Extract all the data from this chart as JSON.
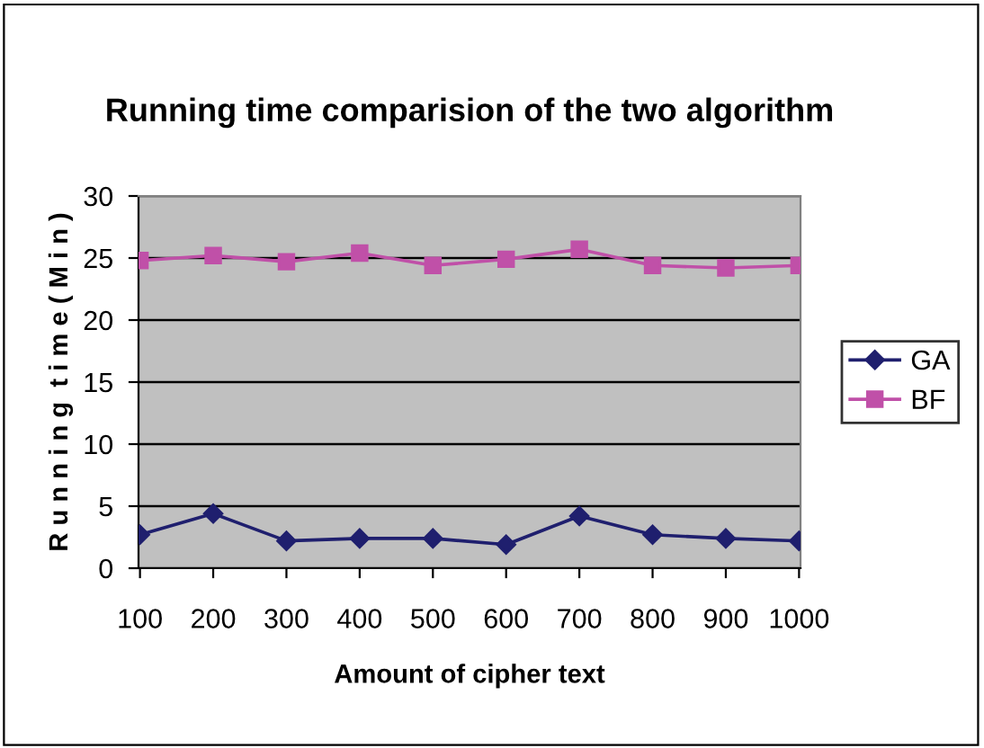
{
  "chart_data": {
    "type": "line",
    "title": "Running time comparision of the two algorithm",
    "xlabel": "Amount of cipher text",
    "ylabel": "R u n n i n g  t i m e ( M i n )",
    "categories": [
      "100",
      "200",
      "300",
      "400",
      "500",
      "600",
      "700",
      "800",
      "900",
      "1000"
    ],
    "series": [
      {
        "name": "GA",
        "color": "#1f1f6e",
        "marker": "diamond",
        "values": [
          2.7,
          4.4,
          2.2,
          2.4,
          2.4,
          1.9,
          4.2,
          2.7,
          2.4,
          2.2
        ]
      },
      {
        "name": "BF",
        "color": "#c050a8",
        "marker": "square",
        "values": [
          24.8,
          25.2,
          24.7,
          25.4,
          24.4,
          24.9,
          25.7,
          24.4,
          24.2,
          24.4
        ]
      }
    ],
    "ylim": [
      0,
      30
    ],
    "yticks": [
      0,
      5,
      10,
      15,
      20,
      25,
      30
    ],
    "grid": "y",
    "legend": "right"
  }
}
